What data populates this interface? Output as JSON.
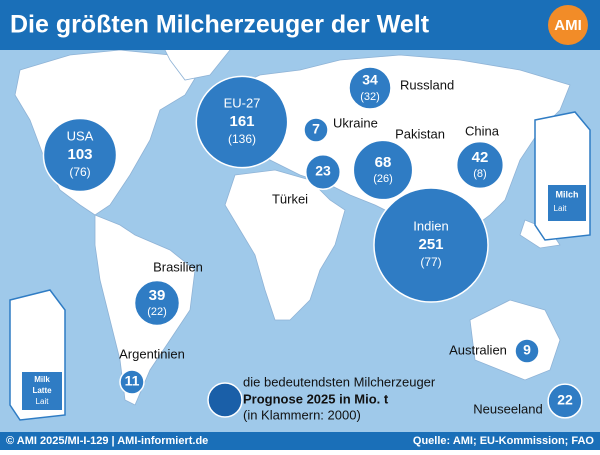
{
  "header": {
    "title": "Die größten Milcherzeuger der Welt",
    "logo": "AMI"
  },
  "bubbles": [
    {
      "name": "USA",
      "value": 103,
      "label_2000": "(76)"
    },
    {
      "name": "EU-27",
      "value": 161,
      "label_2000": "(136)"
    },
    {
      "name": "Russland",
      "value": 34,
      "label_2000": "(32)"
    },
    {
      "name": "Ukraine",
      "value": 7
    },
    {
      "name": "Türkei",
      "value": 23
    },
    {
      "name": "Pakistan",
      "value": 68,
      "label_2000": "(26)"
    },
    {
      "name": "China",
      "value": 42,
      "label_2000": "(8)"
    },
    {
      "name": "Indien",
      "value": 251,
      "label_2000": "(77)"
    },
    {
      "name": "Brasilien",
      "value": 39,
      "label_2000": "(22)"
    },
    {
      "name": "Argentinien",
      "value": 11
    },
    {
      "name": "Australien",
      "value": 9
    },
    {
      "name": "Neuseeland",
      "value": 22
    }
  ],
  "legend": {
    "line1": "die bedeutendsten Milcherzeuger",
    "line2": "Prognose 2025 in Mio. t",
    "line3": "(in Klammern: 2000)"
  },
  "carton": {
    "milk": "Milk",
    "milch": "Milch",
    "latte": "Latte",
    "lait": "Lait"
  },
  "footer": {
    "left": "© AMI 2025/MI-I-129 | AMI-informiert.de",
    "right": "Quelle: AMI; EU-Kommission; FAO"
  }
}
